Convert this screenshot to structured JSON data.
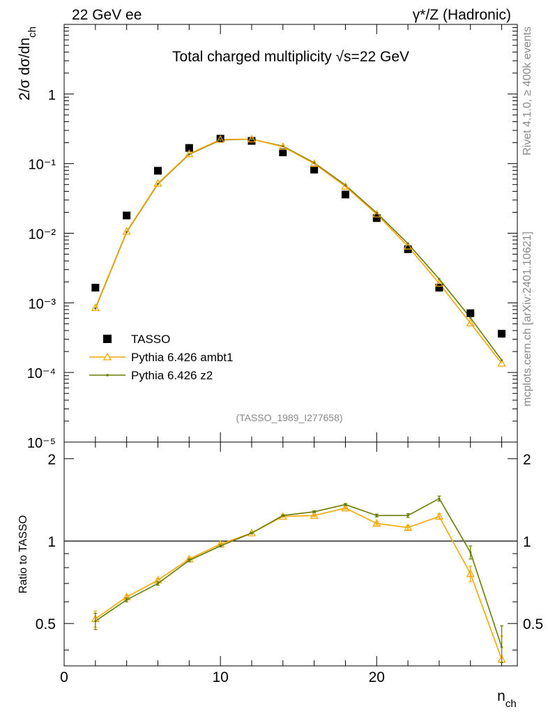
{
  "header": {
    "left": "22 GeV ee",
    "right": "γ*/Z (Hadronic)"
  },
  "side_label_top": "Rivet 4.1.0, ≥ 400k events",
  "side_label_bottom": "mcplots.cern.ch [arXiv:2401.10621]",
  "chart_data": [
    {
      "type": "scatter",
      "panel": "main",
      "title": "Total charged multiplicity √s=22 GeV",
      "ylabel": "2/σ  dσ/dn_ch",
      "xlabel": "n_ch",
      "xlim": [
        0,
        29
      ],
      "ylim": [
        1e-05,
        10
      ],
      "yscale": "log",
      "ytick_labels": [
        "10⁻⁵",
        "10⁻⁴",
        "10⁻³",
        "10⁻²",
        "10⁻¹",
        "1"
      ],
      "watermark": "(TASSO_1989_I277658)",
      "legend_position": "bottom-left",
      "series": [
        {
          "name": "TASSO",
          "color": "#000000",
          "marker": "square",
          "x": [
            2,
            4,
            6,
            8,
            10,
            12,
            14,
            16,
            18,
            20,
            22,
            24,
            26,
            28
          ],
          "y": [
            0.00165,
            0.018,
            0.079,
            0.168,
            0.228,
            0.212,
            0.145,
            0.082,
            0.036,
            0.0165,
            0.0059,
            0.00165,
            0.00071,
            0.00036
          ]
        },
        {
          "name": "Pythia 6.426 ambt1",
          "color": "#f5a700",
          "marker": "triangle",
          "x": [
            2,
            4,
            6,
            8,
            10,
            12,
            14,
            16,
            18,
            20,
            22,
            24,
            26,
            28
          ],
          "y": [
            0.00085,
            0.0106,
            0.052,
            0.138,
            0.222,
            0.225,
            0.175,
            0.1,
            0.047,
            0.0188,
            0.0065,
            0.0019,
            0.00051,
            0.000135
          ]
        },
        {
          "name": "Pythia 6.426 z2",
          "color": "#6b7b00",
          "marker": "dot",
          "x": [
            2,
            4,
            6,
            8,
            10,
            12,
            14,
            16,
            18,
            20,
            22,
            24,
            26,
            28
          ],
          "y": [
            0.00083,
            0.0104,
            0.051,
            0.136,
            0.218,
            0.225,
            0.178,
            0.103,
            0.049,
            0.0196,
            0.0071,
            0.0022,
            0.00061,
            0.00015
          ]
        }
      ]
    },
    {
      "type": "line",
      "panel": "ratio",
      "ylabel": "Ratio to TASSO",
      "xlabel": "n_ch",
      "xlim": [
        0,
        29
      ],
      "ylim": [
        0.35,
        2.3
      ],
      "yscale": "log",
      "ytick_labels": [
        "0.5",
        "1",
        "2"
      ],
      "xtick_labels": [
        "0",
        "10",
        "20"
      ],
      "series": [
        {
          "name": "Pythia 6.426 ambt1",
          "color": "#f5a700",
          "x": [
            2,
            4,
            6,
            8,
            10,
            12,
            14,
            16,
            18,
            20,
            22,
            24,
            26,
            28
          ],
          "y": [
            0.52,
            0.625,
            0.72,
            0.86,
            0.975,
            1.07,
            1.23,
            1.24,
            1.32,
            1.16,
            1.12,
            1.23,
            0.76,
            0.37
          ],
          "err": [
            0.035,
            0.01,
            0.01,
            0.01,
            0.008,
            0.008,
            0.008,
            0.01,
            0.012,
            0.015,
            0.02,
            0.03,
            0.05,
            0.08
          ]
        },
        {
          "name": "Pythia 6.426 z2",
          "color": "#6b7b00",
          "x": [
            2,
            4,
            6,
            8,
            10,
            12,
            14,
            16,
            18,
            20,
            22,
            24,
            26,
            28
          ],
          "y": [
            0.51,
            0.61,
            0.7,
            0.85,
            0.96,
            1.07,
            1.24,
            1.28,
            1.36,
            1.24,
            1.24,
            1.43,
            0.91,
            0.41
          ],
          "err": [
            0.035,
            0.01,
            0.01,
            0.01,
            0.008,
            0.008,
            0.008,
            0.01,
            0.012,
            0.015,
            0.02,
            0.03,
            0.05,
            0.08
          ]
        }
      ]
    }
  ]
}
